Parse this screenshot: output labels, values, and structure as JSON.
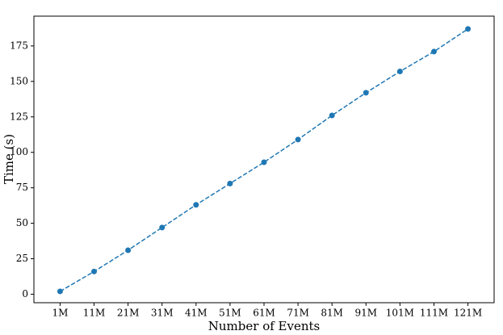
{
  "chart_data": {
    "type": "line",
    "x_label": "Number of Events",
    "y_label": "Time (s)",
    "categories": [
      "1M",
      "11M",
      "21M",
      "31M",
      "41M",
      "51M",
      "61M",
      "71M",
      "81M",
      "91M",
      "101M",
      "111M",
      "121M"
    ],
    "series": [
      {
        "color": "#1f77b4",
        "values": [
          2,
          16,
          31,
          47,
          63,
          78,
          93,
          109,
          126,
          142,
          157,
          171,
          187
        ]
      }
    ],
    "ylim": [
      -6,
      196
    ],
    "yticks": [
      0,
      25,
      50,
      75,
      100,
      125,
      150,
      175
    ],
    "line_style": "dashed",
    "markers": true
  }
}
